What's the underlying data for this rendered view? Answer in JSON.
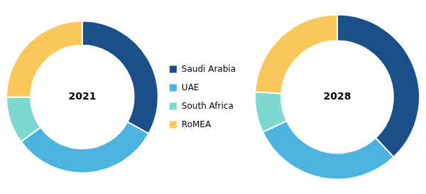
{
  "chart_data": [
    {
      "type": "doughnut",
      "title": "2021",
      "categories": [
        "Saudi Arabia",
        "UAE",
        "South Africa",
        "RoMEA"
      ],
      "values": [
        33,
        32,
        10,
        25
      ],
      "colors": [
        "#1b4f8a",
        "#4ab3e0",
        "#7dd9d0",
        "#f9c85a"
      ],
      "legend": "right"
    },
    {
      "type": "doughnut",
      "title": "2028",
      "categories": [
        "Saudi Arabia",
        "UAE",
        "South Africa",
        "RoMEA"
      ],
      "values": [
        38,
        30,
        8,
        24
      ],
      "colors": [
        "#1b4f8a",
        "#4ab3e0",
        "#7dd9d0",
        "#f9c85a"
      ]
    }
  ]
}
